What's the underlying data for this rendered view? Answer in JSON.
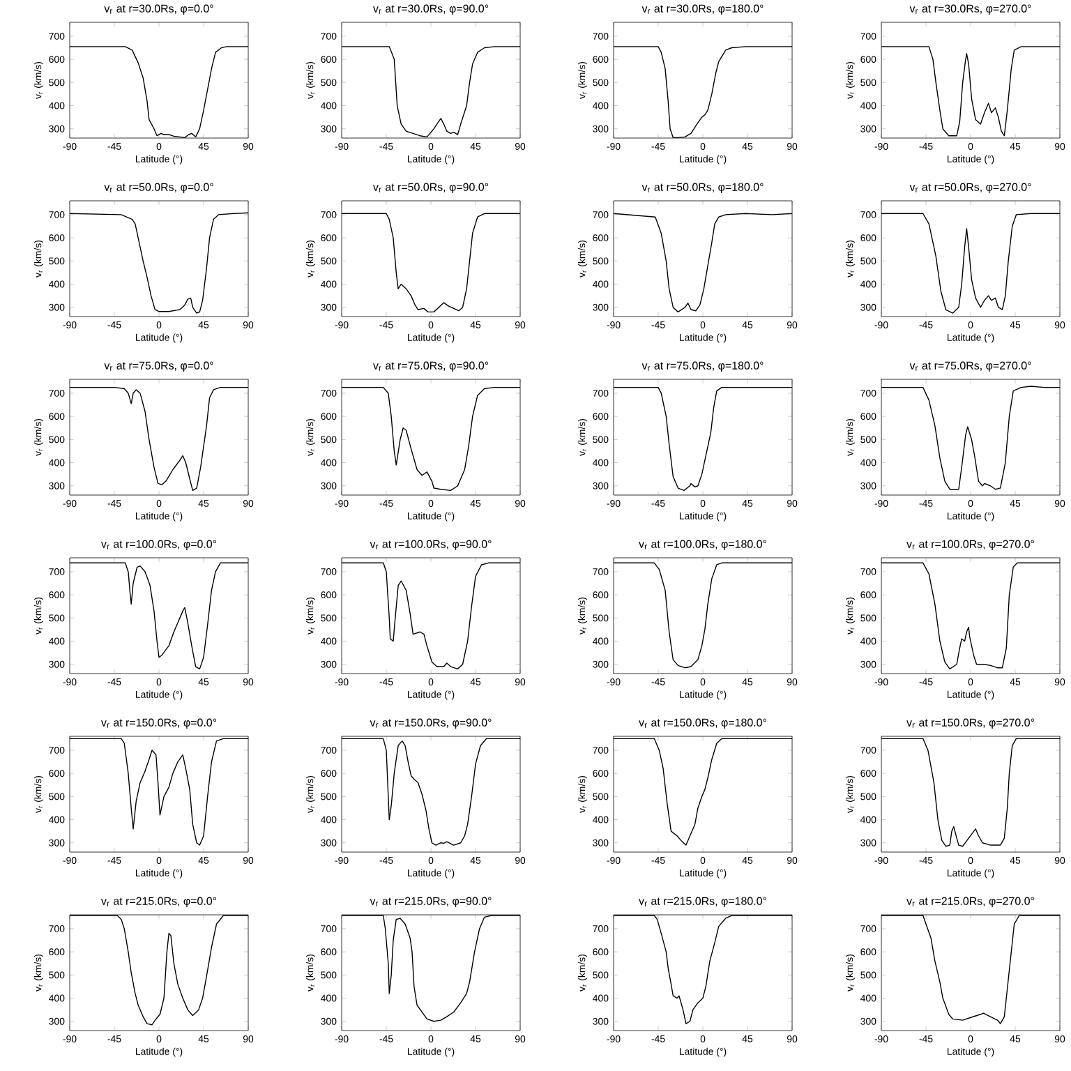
{
  "chart_data": [
    {
      "type": "line",
      "title": "v$_{r}$ at r=30.0Rs, φ=0.0°",
      "xlabel": "Latitude (°)",
      "ylabel": "v$_{r}$ (km/s)",
      "xlim": [
        -90,
        90
      ],
      "ylim": [
        260,
        760
      ],
      "xticks": [
        -90,
        -45,
        0,
        45,
        90
      ],
      "yticks": [
        300,
        400,
        500,
        600,
        700
      ],
      "color": "#000000",
      "x": [
        -90,
        -34,
        -27,
        -21,
        -16,
        -12,
        -10,
        -5,
        -2,
        2,
        5,
        10,
        15,
        21,
        26,
        30,
        33,
        37,
        41,
        45,
        49,
        53,
        57,
        63,
        68,
        90
      ],
      "values": [
        655,
        655,
        640,
        585,
        520,
        420,
        340,
        300,
        270,
        280,
        275,
        275,
        268,
        265,
        262,
        275,
        280,
        265,
        300,
        380,
        470,
        560,
        630,
        650,
        655,
        655
      ]
    },
    {
      "type": "line",
      "title": "v$_{r}$ at r=30.0Rs, φ=90.0°",
      "xlabel": "Latitude (°)",
      "ylabel": "v$_{r}$ (km/s)",
      "xlim": [
        -90,
        90
      ],
      "ylim": [
        260,
        760
      ],
      "xticks": [
        -90,
        -45,
        0,
        45,
        90
      ],
      "yticks": [
        300,
        400,
        500,
        600,
        700
      ],
      "color": "#000000",
      "x": [
        -90,
        -42,
        -37,
        -34,
        -30,
        -25,
        -18,
        -11,
        -4,
        3,
        6,
        10,
        13,
        16,
        20,
        23,
        27,
        30,
        36,
        39,
        42,
        47,
        54,
        64,
        90
      ],
      "values": [
        655,
        655,
        600,
        400,
        320,
        290,
        280,
        270,
        265,
        300,
        320,
        345,
        320,
        290,
        280,
        285,
        275,
        320,
        400,
        500,
        580,
        630,
        650,
        655,
        655
      ]
    },
    {
      "type": "line",
      "title": "v$_{r}$ at r=30.0Rs, φ=180.0°",
      "xlabel": "Latitude (°)",
      "ylabel": "v$_{r}$ (km/s)",
      "xlim": [
        -90,
        90
      ],
      "ylim": [
        260,
        760
      ],
      "xticks": [
        -90,
        -45,
        0,
        45,
        90
      ],
      "yticks": [
        300,
        400,
        500,
        600,
        700
      ],
      "color": "#000000",
      "x": [
        -90,
        -45,
        -42,
        -38,
        -35,
        -33,
        -30,
        -25,
        -18,
        -12,
        -6,
        -1,
        2,
        5,
        9,
        13,
        16,
        23,
        29,
        43,
        90
      ],
      "values": [
        655,
        655,
        630,
        560,
        420,
        300,
        262,
        262,
        265,
        280,
        320,
        350,
        360,
        380,
        450,
        540,
        590,
        640,
        650,
        655,
        655
      ]
    },
    {
      "type": "line",
      "title": "v$_{r}$ at r=30.0Rs, φ=270.0°",
      "xlabel": "Latitude (°)",
      "ylabel": "v$_{r}$ (km/s)",
      "xlim": [
        -90,
        90
      ],
      "ylim": [
        260,
        760
      ],
      "xticks": [
        -90,
        -45,
        0,
        45,
        90
      ],
      "yticks": [
        300,
        400,
        500,
        600,
        700
      ],
      "color": "#000000",
      "x": [
        -90,
        -42,
        -38,
        -35,
        -31,
        -28,
        -22,
        -14,
        -11,
        -8,
        -5,
        -4,
        -2,
        1,
        5,
        10,
        14,
        18,
        21,
        25,
        28,
        31,
        34,
        37,
        41,
        44,
        51,
        90
      ],
      "values": [
        655,
        655,
        600,
        500,
        380,
        300,
        270,
        270,
        330,
        500,
        600,
        625,
        580,
        430,
        340,
        320,
        370,
        410,
        370,
        390,
        350,
        290,
        270,
        380,
        560,
        640,
        655,
        655
      ]
    },
    {
      "type": "line",
      "title": "v$_{r}$ at r=50.0Rs, φ=0.0°",
      "xlabel": "Latitude (°)",
      "ylabel": "v$_{r}$ (km/s)",
      "xlim": [
        -90,
        90
      ],
      "ylim": [
        260,
        760
      ],
      "xticks": [
        -90,
        -45,
        0,
        45,
        90
      ],
      "yticks": [
        300,
        400,
        500,
        600,
        700
      ],
      "color": "#000000",
      "x": [
        -90,
        -38,
        -27,
        -24,
        -21,
        -16,
        -12,
        -8,
        -4,
        0,
        10,
        21,
        26,
        29,
        32,
        34,
        38,
        41,
        44,
        48,
        51,
        55,
        60,
        75,
        90
      ],
      "values": [
        705,
        700,
        680,
        660,
        600,
        500,
        430,
        350,
        290,
        282,
        282,
        290,
        310,
        335,
        340,
        300,
        275,
        280,
        330,
        470,
        600,
        680,
        700,
        705,
        708
      ]
    },
    {
      "type": "line",
      "title": "v$_{r}$ at r=50.0Rs, φ=90.0°",
      "xlabel": "Latitude (°)",
      "ylabel": "v$_{r}$ (km/s)",
      "xlim": [
        -90,
        90
      ],
      "ylim": [
        260,
        760
      ],
      "xticks": [
        -90,
        -45,
        0,
        45,
        90
      ],
      "yticks": [
        300,
        400,
        500,
        600,
        700
      ],
      "color": "#000000",
      "x": [
        -90,
        -45,
        -42,
        -38,
        -35,
        -33,
        -30,
        -25,
        -20,
        -16,
        -13,
        -7,
        -3,
        3,
        8,
        13,
        18,
        23,
        28,
        32,
        36,
        39,
        42,
        47,
        54,
        90
      ],
      "values": [
        705,
        705,
        680,
        600,
        450,
        380,
        400,
        380,
        350,
        310,
        290,
        295,
        280,
        280,
        300,
        320,
        305,
        295,
        285,
        300,
        380,
        500,
        620,
        690,
        705,
        705
      ]
    },
    {
      "type": "line",
      "title": "v$_{r}$ at r=50.0Rs, φ=180.0°",
      "xlabel": "Latitude (°)",
      "ylabel": "v$_{r}$ (km/s)",
      "xlim": [
        -90,
        90
      ],
      "ylim": [
        260,
        760
      ],
      "xticks": [
        -90,
        -45,
        0,
        45,
        90
      ],
      "yticks": [
        300,
        400,
        500,
        600,
        700
      ],
      "color": "#000000",
      "x": [
        -90,
        -48,
        -42,
        -37,
        -34,
        -30,
        -25,
        -18,
        -15,
        -12,
        -7,
        -3,
        1,
        5,
        9,
        12,
        16,
        23,
        43,
        70,
        90
      ],
      "values": [
        705,
        690,
        620,
        500,
        380,
        300,
        280,
        300,
        318,
        290,
        285,
        310,
        380,
        480,
        580,
        660,
        690,
        700,
        705,
        700,
        705
      ]
    },
    {
      "type": "line",
      "title": "v$_{r}$ at r=50.0Rs, φ=270.0°",
      "xlabel": "Latitude (°)",
      "ylabel": "v$_{r}$ (km/s)",
      "xlim": [
        -90,
        90
      ],
      "ylim": [
        260,
        760
      ],
      "xticks": [
        -90,
        -45,
        0,
        45,
        90
      ],
      "yticks": [
        300,
        400,
        500,
        600,
        700
      ],
      "color": "#000000",
      "x": [
        -90,
        -48,
        -42,
        -35,
        -30,
        -25,
        -18,
        -12,
        -9,
        -6,
        -4,
        -2,
        1,
        5,
        10,
        14,
        18,
        21,
        25,
        28,
        32,
        35,
        38,
        42,
        46,
        61,
        90
      ],
      "values": [
        705,
        705,
        660,
        520,
        370,
        290,
        275,
        300,
        400,
        560,
        640,
        560,
        420,
        340,
        300,
        330,
        350,
        330,
        340,
        300,
        290,
        350,
        500,
        650,
        700,
        705,
        705
      ]
    },
    {
      "type": "line",
      "title": "v$_{r}$ at r=75.0Rs, φ=0.0°",
      "xlabel": "Latitude (°)",
      "ylabel": "v$_{r}$ (km/s)",
      "xlim": [
        -90,
        90
      ],
      "ylim": [
        260,
        760
      ],
      "xticks": [
        -90,
        -45,
        0,
        45,
        90
      ],
      "yticks": [
        300,
        400,
        500,
        600,
        700
      ],
      "color": "#000000",
      "x": [
        -90,
        -45,
        -35,
        -31,
        -28,
        -26,
        -23,
        -19,
        -14,
        -10,
        -5,
        -1,
        3,
        7,
        14,
        21,
        24,
        27,
        31,
        34,
        38,
        42,
        48,
        51,
        55,
        62,
        90
      ],
      "values": [
        725,
        725,
        720,
        700,
        655,
        700,
        715,
        700,
        620,
        500,
        380,
        310,
        305,
        320,
        370,
        410,
        430,
        400,
        330,
        280,
        290,
        380,
        560,
        680,
        715,
        725,
        725
      ]
    },
    {
      "type": "line",
      "title": "v$_{r}$ at r=75.0Rs, φ=90.0°",
      "xlabel": "Latitude (°)",
      "ylabel": "v$_{r}$ (km/s)",
      "xlim": [
        -90,
        90
      ],
      "ylim": [
        260,
        760
      ],
      "xticks": [
        -90,
        -45,
        0,
        45,
        90
      ],
      "yticks": [
        300,
        400,
        500,
        600,
        700
      ],
      "color": "#000000",
      "x": [
        -90,
        -48,
        -43,
        -40,
        -37,
        -35,
        -31,
        -28,
        -25,
        -20,
        -14,
        -9,
        -4,
        1,
        3,
        10,
        20,
        27,
        34,
        38,
        42,
        47,
        54,
        64,
        90
      ],
      "values": [
        725,
        725,
        700,
        600,
        450,
        390,
        500,
        550,
        540,
        460,
        370,
        345,
        360,
        320,
        290,
        285,
        280,
        300,
        370,
        470,
        600,
        690,
        720,
        725,
        725
      ]
    },
    {
      "type": "line",
      "title": "v$_{r}$ at r=75.0Rs, φ=180.0°",
      "xlabel": "Latitude (°)",
      "ylabel": "v$_{r}$ (km/s)",
      "xlim": [
        -90,
        90
      ],
      "ylim": [
        260,
        760
      ],
      "xticks": [
        -90,
        -45,
        0,
        45,
        90
      ],
      "yticks": [
        300,
        400,
        500,
        600,
        700
      ],
      "color": "#000000",
      "x": [
        -90,
        -45,
        -42,
        -37,
        -34,
        -30,
        -25,
        -19,
        -13,
        -12,
        -8,
        -5,
        -1,
        3,
        8,
        11,
        14,
        19,
        90
      ],
      "values": [
        725,
        725,
        700,
        600,
        480,
        340,
        290,
        280,
        300,
        310,
        295,
        300,
        350,
        430,
        530,
        640,
        710,
        725,
        725
      ]
    },
    {
      "type": "line",
      "title": "v$_{r}$ at r=75.0Rs, φ=270.0°",
      "xlabel": "Latitude (°)",
      "ylabel": "v$_{r}$ (km/s)",
      "xlim": [
        -90,
        90
      ],
      "ylim": [
        260,
        760
      ],
      "xticks": [
        -90,
        -45,
        0,
        45,
        90
      ],
      "yticks": [
        300,
        400,
        500,
        600,
        700
      ],
      "color": "#000000",
      "x": [
        -90,
        -48,
        -42,
        -36,
        -31,
        -26,
        -21,
        -12,
        -9,
        -5,
        -3,
        1,
        4,
        8,
        12,
        14,
        20,
        25,
        30,
        35,
        39,
        43,
        51,
        61,
        74,
        90
      ],
      "values": [
        725,
        725,
        670,
        560,
        420,
        320,
        285,
        285,
        380,
        520,
        555,
        500,
        430,
        320,
        300,
        310,
        300,
        285,
        290,
        400,
        600,
        710,
        725,
        730,
        725,
        725
      ]
    },
    {
      "type": "line",
      "title": "v$_{r}$ at r=100.0Rs, φ=0.0°",
      "xlabel": "Latitude (°)",
      "ylabel": "v$_{r}$ (km/s)",
      "xlim": [
        -90,
        90
      ],
      "ylim": [
        260,
        760
      ],
      "xticks": [
        -90,
        -45,
        0,
        45,
        90
      ],
      "yticks": [
        300,
        400,
        500,
        600,
        700
      ],
      "color": "#000000",
      "x": [
        -90,
        -34,
        -31,
        -29,
        -28,
        -26,
        -22,
        -19,
        -14,
        -9,
        -5,
        -2,
        0,
        3,
        10,
        15,
        19,
        24,
        26,
        29,
        33,
        37,
        41,
        45,
        49,
        53,
        57,
        62,
        90
      ],
      "values": [
        738,
        738,
        700,
        600,
        560,
        650,
        720,
        725,
        700,
        640,
        530,
        400,
        330,
        340,
        380,
        440,
        480,
        530,
        545,
        480,
        380,
        290,
        280,
        330,
        470,
        620,
        700,
        738,
        738
      ]
    },
    {
      "type": "line",
      "title": "v$_{r}$ at r=100.0Rs, φ=90.0°",
      "xlabel": "Latitude (°)",
      "ylabel": "v$_{r}$ (km/s)",
      "xlim": [
        -90,
        90
      ],
      "ylim": [
        260,
        760
      ],
      "xticks": [
        -90,
        -45,
        0,
        45,
        90
      ],
      "yticks": [
        300,
        400,
        500,
        600,
        700
      ],
      "color": "#000000",
      "x": [
        -90,
        -48,
        -45,
        -42,
        -41,
        -38,
        -36,
        -33,
        -30,
        -25,
        -21,
        -18,
        -11,
        -7,
        -4,
        1,
        6,
        13,
        16,
        20,
        27,
        32,
        37,
        41,
        45,
        51,
        58,
        90
      ],
      "values": [
        738,
        738,
        700,
        500,
        410,
        400,
        500,
        640,
        660,
        620,
        520,
        430,
        440,
        430,
        380,
        310,
        290,
        290,
        305,
        290,
        280,
        300,
        400,
        550,
        680,
        730,
        738,
        738
      ]
    },
    {
      "type": "line",
      "title": "v$_{r}$ at r=100.0Rs, φ=180.0°",
      "xlabel": "Latitude (°)",
      "ylabel": "v$_{r}$ (km/s)",
      "xlim": [
        -90,
        90
      ],
      "ylim": [
        260,
        760
      ],
      "xticks": [
        -90,
        -45,
        0,
        45,
        90
      ],
      "yticks": [
        300,
        400,
        500,
        600,
        700
      ],
      "color": "#000000",
      "x": [
        -90,
        -49,
        -44,
        -38,
        -34,
        -30,
        -25,
        -18,
        -12,
        -5,
        -1,
        2,
        5,
        9,
        14,
        19,
        90
      ],
      "values": [
        738,
        738,
        710,
        620,
        440,
        320,
        295,
        285,
        290,
        320,
        380,
        450,
        560,
        670,
        730,
        738,
        738
      ]
    },
    {
      "type": "line",
      "title": "v$_{r}$ at r=100.0Rs, φ=270.0°",
      "xlabel": "Latitude (°)",
      "ylabel": "v$_{r}$ (km/s)",
      "xlim": [
        -90,
        90
      ],
      "ylim": [
        260,
        760
      ],
      "xticks": [
        -90,
        -45,
        0,
        45,
        90
      ],
      "yticks": [
        300,
        400,
        500,
        600,
        700
      ],
      "color": "#000000",
      "x": [
        -90,
        -48,
        -42,
        -36,
        -31,
        -26,
        -21,
        -14,
        -11,
        -9,
        -6,
        -4,
        -2,
        -1,
        3,
        6,
        13,
        20,
        27,
        32,
        36,
        39,
        43,
        47,
        90
      ],
      "values": [
        738,
        738,
        690,
        560,
        400,
        310,
        280,
        300,
        370,
        410,
        400,
        440,
        460,
        420,
        340,
        300,
        300,
        295,
        285,
        285,
        370,
        600,
        720,
        738,
        738
      ]
    },
    {
      "type": "line",
      "title": "v$_{r}$ at r=150.0Rs, φ=0.0°",
      "xlabel": "Latitude (°)",
      "ylabel": "v$_{r}$ (km/s)",
      "xlim": [
        -90,
        90
      ],
      "ylim": [
        260,
        760
      ],
      "xticks": [
        -90,
        -45,
        0,
        45,
        90
      ],
      "yticks": [
        300,
        400,
        500,
        600,
        700
      ],
      "color": "#000000",
      "x": [
        -90,
        -38,
        -35,
        -31,
        -28,
        -26,
        -23,
        -19,
        -14,
        -10,
        -7,
        -3,
        -1,
        1,
        5,
        10,
        14,
        19,
        24,
        27,
        31,
        34,
        38,
        41,
        45,
        49,
        53,
        58,
        65,
        90
      ],
      "values": [
        750,
        750,
        730,
        600,
        450,
        360,
        480,
        560,
        610,
        660,
        700,
        680,
        560,
        420,
        500,
        540,
        600,
        650,
        680,
        620,
        530,
        380,
        300,
        290,
        330,
        500,
        650,
        740,
        750,
        750
      ]
    },
    {
      "type": "line",
      "title": "v$_{r}$ at r=150.0Rs, φ=90.0°",
      "xlabel": "Latitude (°)",
      "ylabel": "v$_{r}$ (km/s)",
      "xlim": [
        -90,
        90
      ],
      "ylim": [
        260,
        760
      ],
      "xticks": [
        -90,
        -45,
        0,
        45,
        90
      ],
      "yticks": [
        300,
        400,
        500,
        600,
        700
      ],
      "color": "#000000",
      "x": [
        -90,
        -48,
        -45,
        -43,
        -42,
        -40,
        -37,
        -33,
        -29,
        -26,
        -23,
        -20,
        -17,
        -13,
        -9,
        -5,
        -2,
        1,
        5,
        10,
        13,
        16,
        23,
        30,
        34,
        37,
        41,
        45,
        50,
        56,
        90
      ],
      "values": [
        750,
        750,
        700,
        500,
        400,
        460,
        600,
        720,
        740,
        720,
        650,
        590,
        575,
        560,
        510,
        440,
        360,
        300,
        290,
        300,
        298,
        305,
        290,
        300,
        330,
        380,
        500,
        640,
        720,
        750,
        750
      ]
    },
    {
      "type": "line",
      "title": "v$_{r}$ at r=150.0Rs, φ=180.0°",
      "xlabel": "Latitude (°)",
      "ylabel": "v$_{r}$ (km/s)",
      "xlim": [
        -90,
        90
      ],
      "ylim": [
        260,
        760
      ],
      "xticks": [
        -90,
        -45,
        0,
        45,
        90
      ],
      "yticks": [
        300,
        400,
        500,
        600,
        700
      ],
      "color": "#000000",
      "x": [
        -90,
        -49,
        -44,
        -40,
        -36,
        -32,
        -26,
        -22,
        -17,
        -13,
        -8,
        -5,
        -1,
        2,
        5,
        9,
        14,
        19,
        90
      ],
      "values": [
        750,
        750,
        700,
        620,
        470,
        350,
        330,
        310,
        290,
        330,
        380,
        450,
        500,
        530,
        580,
        660,
        730,
        750,
        750
      ]
    },
    {
      "type": "line",
      "title": "v$_{r}$ at r=150.0Rs, φ=270.0°",
      "xlabel": "Latitude (°)",
      "ylabel": "v$_{r}$ (km/s)",
      "xlim": [
        -90,
        90
      ],
      "ylim": [
        260,
        760
      ],
      "xticks": [
        -90,
        -45,
        0,
        45,
        90
      ],
      "yticks": [
        300,
        400,
        500,
        600,
        700
      ],
      "color": "#000000",
      "x": [
        -90,
        -48,
        -43,
        -37,
        -33,
        -29,
        -25,
        -21,
        -19,
        -17,
        -14,
        -12,
        -8,
        -2,
        5,
        8,
        12,
        20,
        30,
        34,
        37,
        39,
        42,
        46,
        90
      ],
      "values": [
        750,
        750,
        700,
        560,
        400,
        310,
        285,
        290,
        350,
        370,
        320,
        290,
        285,
        320,
        360,
        330,
        300,
        290,
        290,
        320,
        450,
        600,
        720,
        750,
        750
      ]
    },
    {
      "type": "line",
      "title": "v$_{r}$ at r=215.0Rs, φ=0.0°",
      "xlabel": "Latitude (°)",
      "ylabel": "v$_{r}$ (km/s)",
      "xlim": [
        -90,
        90
      ],
      "ylim": [
        260,
        760
      ],
      "xticks": [
        -90,
        -45,
        0,
        45,
        90
      ],
      "yticks": [
        300,
        400,
        500,
        600,
        700
      ],
      "color": "#000000",
      "x": [
        -90,
        -42,
        -38,
        -35,
        -31,
        -28,
        -24,
        -21,
        -16,
        -12,
        -7,
        -3,
        1,
        5,
        8,
        10,
        12,
        15,
        19,
        24,
        29,
        34,
        40,
        44,
        49,
        53,
        58,
        65,
        90
      ],
      "values": [
        757,
        757,
        740,
        700,
        600,
        510,
        420,
        370,
        320,
        290,
        285,
        310,
        330,
        400,
        600,
        680,
        670,
        550,
        460,
        400,
        350,
        325,
        350,
        400,
        520,
        620,
        720,
        757,
        757
      ]
    },
    {
      "type": "line",
      "title": "v$_{r}$ at r=215.0Rs, φ=90.0°",
      "xlabel": "Latitude (°)",
      "ylabel": "v$_{r}$ (km/s)",
      "xlim": [
        -90,
        90
      ],
      "ylim": [
        260,
        760
      ],
      "xticks": [
        -90,
        -45,
        0,
        45,
        90
      ],
      "yticks": [
        300,
        400,
        500,
        600,
        700
      ],
      "color": "#000000",
      "x": [
        -90,
        -48,
        -46,
        -43,
        -42,
        -40,
        -38,
        -35,
        -31,
        -26,
        -21,
        -19,
        -17,
        -14,
        -9,
        -4,
        3,
        10,
        16,
        23,
        30,
        36,
        39,
        44,
        49,
        54,
        61,
        90
      ],
      "values": [
        757,
        757,
        700,
        550,
        420,
        500,
        650,
        740,
        745,
        720,
        660,
        600,
        450,
        370,
        340,
        310,
        300,
        305,
        320,
        340,
        380,
        420,
        470,
        600,
        700,
        750,
        757,
        757
      ]
    },
    {
      "type": "line",
      "title": "v$_{r}$ at r=215.0Rs, φ=180.0°",
      "xlabel": "Latitude (°)",
      "ylabel": "v$_{r}$ (km/s)",
      "xlim": [
        -90,
        90
      ],
      "ylim": [
        260,
        760
      ],
      "xticks": [
        -90,
        -45,
        0,
        45,
        90
      ],
      "yticks": [
        300,
        400,
        500,
        600,
        700
      ],
      "color": "#000000",
      "x": [
        -90,
        -49,
        -46,
        -42,
        -37,
        -35,
        -32,
        -30,
        -26,
        -24,
        -20,
        -17,
        -13,
        -10,
        -5,
        0,
        3,
        7,
        12,
        16,
        23,
        29,
        90
      ],
      "values": [
        757,
        757,
        740,
        680,
        600,
        530,
        460,
        410,
        400,
        410,
        350,
        290,
        300,
        350,
        380,
        400,
        450,
        560,
        640,
        710,
        745,
        757,
        757
      ]
    },
    {
      "type": "line",
      "title": "v$_{r}$ at r=215.0Rs, φ=270.0°",
      "xlabel": "Latitude (°)",
      "ylabel": "v$_{r}$ (km/s)",
      "xlim": [
        -90,
        90
      ],
      "ylim": [
        260,
        760
      ],
      "xticks": [
        -90,
        -45,
        0,
        45,
        90
      ],
      "yticks": [
        300,
        400,
        500,
        600,
        700
      ],
      "color": "#000000",
      "x": [
        -90,
        -48,
        -45,
        -40,
        -36,
        -31,
        -28,
        -22,
        -18,
        -8,
        -1,
        10,
        13,
        20,
        27,
        30,
        34,
        37,
        41,
        44,
        49,
        90
      ],
      "values": [
        757,
        757,
        720,
        660,
        560,
        470,
        400,
        330,
        310,
        305,
        315,
        330,
        335,
        320,
        305,
        290,
        320,
        440,
        600,
        720,
        757,
        757
      ]
    }
  ]
}
